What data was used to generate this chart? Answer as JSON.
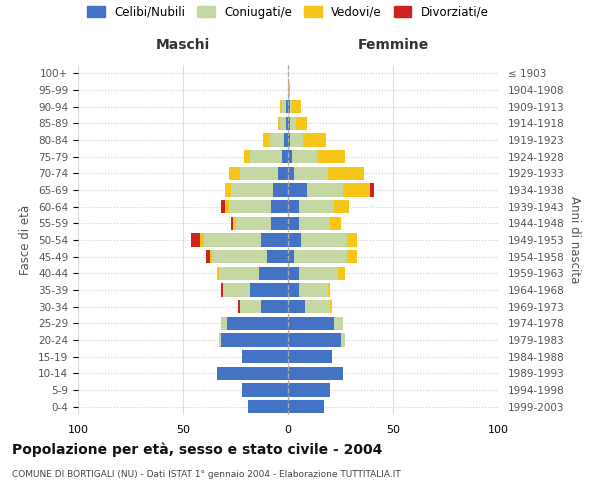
{
  "age_groups": [
    "0-4",
    "5-9",
    "10-14",
    "15-19",
    "20-24",
    "25-29",
    "30-34",
    "35-39",
    "40-44",
    "45-49",
    "50-54",
    "55-59",
    "60-64",
    "65-69",
    "70-74",
    "75-79",
    "80-84",
    "85-89",
    "90-94",
    "95-99",
    "100+"
  ],
  "birth_years": [
    "1999-2003",
    "1994-1998",
    "1989-1993",
    "1984-1988",
    "1979-1983",
    "1974-1978",
    "1969-1973",
    "1964-1968",
    "1959-1963",
    "1954-1958",
    "1949-1953",
    "1944-1948",
    "1939-1943",
    "1934-1938",
    "1929-1933",
    "1924-1928",
    "1919-1923",
    "1914-1918",
    "1909-1913",
    "1904-1908",
    "≤ 1903"
  ],
  "male": {
    "celibi": [
      19,
      22,
      34,
      22,
      32,
      29,
      13,
      18,
      14,
      10,
      13,
      8,
      8,
      7,
      5,
      3,
      2,
      1,
      1,
      0,
      0
    ],
    "coniugati": [
      0,
      0,
      0,
      0,
      1,
      3,
      10,
      13,
      19,
      26,
      27,
      17,
      20,
      20,
      18,
      15,
      7,
      3,
      2,
      0,
      0
    ],
    "vedovi": [
      0,
      0,
      0,
      0,
      0,
      0,
      0,
      0,
      1,
      1,
      2,
      1,
      2,
      3,
      5,
      3,
      3,
      1,
      1,
      0,
      0
    ],
    "divorziati": [
      0,
      0,
      0,
      0,
      0,
      0,
      1,
      1,
      0,
      2,
      4,
      1,
      2,
      0,
      0,
      0,
      0,
      0,
      0,
      0,
      0
    ]
  },
  "female": {
    "nubili": [
      17,
      20,
      26,
      21,
      25,
      22,
      8,
      5,
      5,
      3,
      6,
      5,
      5,
      9,
      3,
      2,
      1,
      1,
      1,
      0,
      0
    ],
    "coniugate": [
      0,
      0,
      0,
      0,
      2,
      4,
      12,
      14,
      19,
      25,
      22,
      15,
      17,
      17,
      16,
      12,
      6,
      3,
      1,
      0,
      0
    ],
    "vedove": [
      0,
      0,
      0,
      0,
      0,
      0,
      1,
      1,
      3,
      5,
      5,
      5,
      7,
      13,
      17,
      13,
      11,
      5,
      4,
      1,
      0
    ],
    "divorziate": [
      0,
      0,
      0,
      0,
      0,
      0,
      0,
      0,
      0,
      0,
      0,
      0,
      0,
      2,
      0,
      0,
      0,
      0,
      0,
      0,
      0
    ]
  },
  "colors": {
    "celibi": "#4472c4",
    "coniugati": "#c5d8a4",
    "vedovi": "#f5c518",
    "divorziati": "#cc2222"
  },
  "title": "Popolazione per età, sesso e stato civile - 2004",
  "subtitle": "COMUNE DI BORTIGALI (NU) - Dati ISTAT 1° gennaio 2004 - Elaborazione TUTTITALIA.IT",
  "xlabel_left": "Maschi",
  "xlabel_right": "Femmine",
  "ylabel_left": "Fasce di età",
  "ylabel_right": "Anni di nascita",
  "xlim": 100,
  "legend_labels": [
    "Celibi/Nubili",
    "Coniugati/e",
    "Vedovi/e",
    "Divorziati/e"
  ],
  "background_color": "#ffffff",
  "grid_color": "#cccccc"
}
